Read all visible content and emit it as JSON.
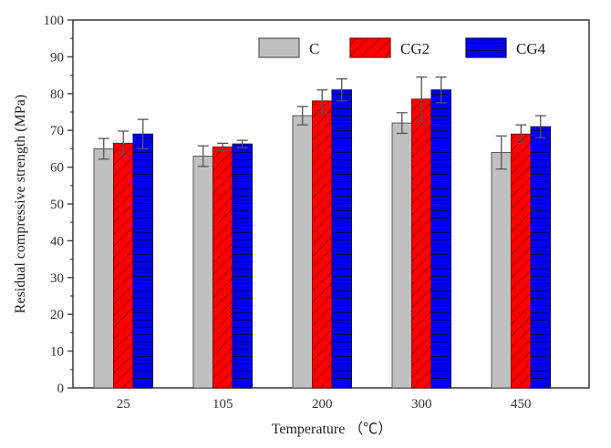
{
  "chart_data": {
    "type": "bar",
    "title": "",
    "xlabel": "Temperature （℃）",
    "ylabel": "Residual compressive strength (MPa)",
    "ylim": [
      0,
      100
    ],
    "yticks": [
      "0",
      "10",
      "20",
      "30",
      "40",
      "50",
      "60",
      "70",
      "80",
      "90",
      "100"
    ],
    "ytick_values": [
      0,
      10,
      20,
      30,
      40,
      50,
      60,
      70,
      80,
      90,
      100
    ],
    "categories": [
      "25",
      "105",
      "200",
      "300",
      "450"
    ],
    "legend_position": "top-right",
    "grid": false,
    "series": [
      {
        "name": "C",
        "color": "#c0c0c0",
        "pattern": "none",
        "values": [
          65,
          63,
          74,
          72,
          64
        ],
        "errors": [
          2.8,
          2.8,
          2.5,
          2.8,
          4.5
        ]
      },
      {
        "name": "CG2",
        "color": "#ff0000",
        "pattern": "diagonal-hatch",
        "values": [
          66.5,
          65.5,
          78,
          78.5,
          69
        ],
        "errors": [
          3.3,
          1.0,
          3.0,
          6.0,
          2.5
        ]
      },
      {
        "name": "CG4",
        "color": "#0000ee",
        "pattern": "horizontal-hatch",
        "values": [
          69,
          66.3,
          81,
          81,
          71
        ],
        "errors": [
          4.0,
          1.0,
          3.0,
          3.5,
          3.0
        ]
      }
    ]
  }
}
